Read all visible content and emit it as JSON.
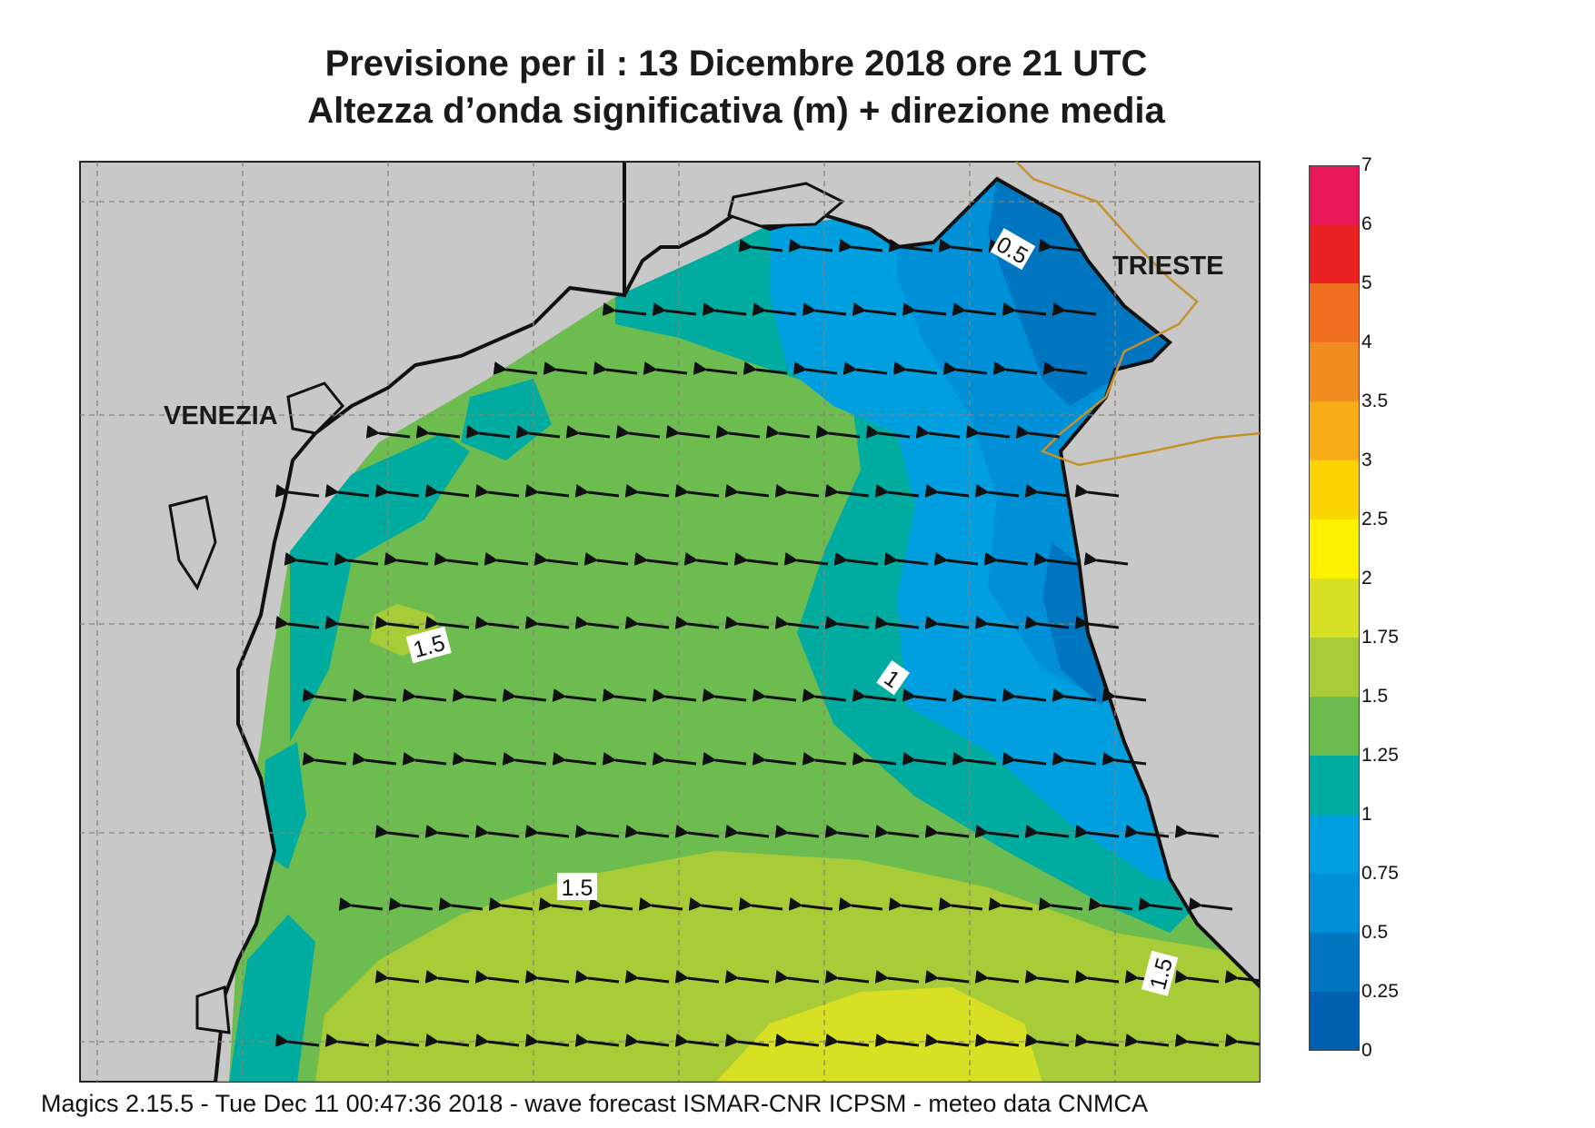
{
  "title": {
    "line1": "Previsione per il  :  13 Dicembre  2018   ore 21 UTC",
    "line2": "Altezza d’onda significativa (m) + direzione media"
  },
  "map": {
    "region": "Northern Adriatic Sea",
    "cities": [
      {
        "name": "VENEZIA"
      },
      {
        "name": "TRIESTE"
      }
    ],
    "contour_labels": [
      "0.5",
      "1",
      "1.5",
      "1.5",
      "1.5"
    ],
    "arrow_direction": "west (pointing left)",
    "colors": {
      "land": "#c8c8c8",
      "coast": "#111111",
      "border": "#c8902a",
      "grid": "#8c8272"
    }
  },
  "colorbar": {
    "levels": [
      {
        "label": "7"
      },
      {
        "label": "6",
        "color": "#e8185a"
      },
      {
        "label": "5",
        "color": "#e82020"
      },
      {
        "label": "4",
        "color": "#f07020"
      },
      {
        "label": "3.5",
        "color": "#f08c20"
      },
      {
        "label": "3",
        "color": "#f8ac18"
      },
      {
        "label": "2.5",
        "color": "#fcd400"
      },
      {
        "label": "2",
        "color": "#fcf200"
      },
      {
        "label": "1.75",
        "color": "#d8e024"
      },
      {
        "label": "1.5",
        "color": "#a8cc38"
      },
      {
        "label": "1.25",
        "color": "#6cbc50"
      },
      {
        "label": "1",
        "color": "#00aca0"
      },
      {
        "label": "0.75",
        "color": "#00a0e0"
      },
      {
        "label": "0.5",
        "color": "#0090d8"
      },
      {
        "label": "0.25",
        "color": "#0076c0"
      },
      {
        "label": "0",
        "color": "#0060b0"
      }
    ]
  },
  "footer": "Magics 2.15.5 - Tue Dec 11 00:47:36 2018 - wave forecast  ISMAR-CNR  ICPSM - meteo data   CNMCA"
}
